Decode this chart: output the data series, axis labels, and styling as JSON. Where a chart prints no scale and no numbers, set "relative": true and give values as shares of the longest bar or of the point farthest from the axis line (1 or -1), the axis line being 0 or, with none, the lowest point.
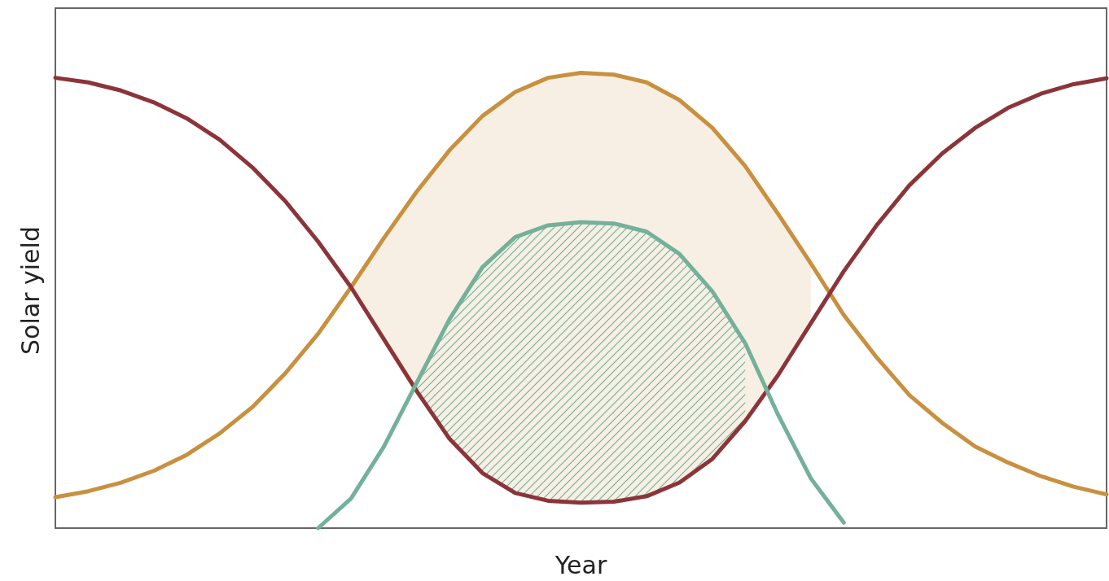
{
  "chart_data": {
    "type": "line",
    "xlabel": "Year",
    "ylabel": "Solar yield",
    "relative": true,
    "grid": false,
    "marker": "none",
    "line_style": "solid",
    "categories": [
      null,
      null,
      null,
      null,
      null,
      null,
      null,
      null,
      null,
      null,
      null,
      null,
      null,
      null,
      null,
      null,
      null,
      null,
      null,
      null,
      null,
      null,
      null,
      null,
      null,
      null,
      null,
      null,
      null,
      null,
      null,
      null,
      null
    ],
    "series": [
      {
        "color": "#c8903f",
        "values": [
          0.068,
          0.081,
          0.1,
          0.126,
          0.161,
          0.208,
          0.266,
          0.34,
          0.427,
          0.529,
          0.637,
          0.739,
          0.83,
          0.905,
          0.958,
          0.989,
          1,
          0.996,
          0.979,
          0.94,
          0.879,
          0.795,
          0.69,
          0.581,
          0.468,
          0.375,
          0.292,
          0.231,
          0.179,
          0.144,
          0.114,
          0.091,
          0.074
        ],
        "lower": [
          null,
          null,
          null,
          null,
          null,
          null,
          null,
          null,
          null,
          0.529,
          0.415,
          0.301,
          0.196,
          0.121,
          0.077,
          0.06,
          0.056,
          0.058,
          0.07,
          0.1,
          0.152,
          0.235,
          0.336,
          0.45,
          null,
          null,
          null,
          null,
          null,
          null,
          null,
          null,
          null
        ],
        "upper": [
          null,
          null,
          null,
          null,
          null,
          null,
          null,
          null,
          null,
          0.529,
          0.637,
          0.739,
          0.83,
          0.905,
          0.958,
          0.989,
          1,
          0.996,
          0.979,
          0.94,
          0.879,
          0.795,
          0.69,
          0.581,
          null,
          null,
          null,
          null,
          null,
          null,
          null,
          null,
          null
        ]
      },
      {
        "color": "#8b3439",
        "values": [
          0.989,
          0.979,
          0.961,
          0.935,
          0.9,
          0.853,
          0.792,
          0.718,
          0.629,
          0.529,
          0.415,
          0.301,
          0.196,
          0.121,
          0.077,
          0.06,
          0.056,
          0.058,
          0.07,
          0.1,
          0.152,
          0.235,
          0.336,
          0.45,
          0.564,
          0.665,
          0.753,
          0.823,
          0.879,
          0.923,
          0.954,
          0.975,
          0.988
        ]
      },
      {
        "color": "#74b09a",
        "values": [
          null,
          null,
          null,
          null,
          null,
          null,
          null,
          null,
          0,
          0.065,
          0.179,
          0.319,
          0.459,
          0.573,
          0.639,
          0.665,
          0.672,
          0.669,
          0.651,
          0.602,
          0.52,
          0.406,
          0.249,
          0.109,
          0.012,
          null,
          null,
          null,
          null,
          null,
          null,
          null,
          null
        ],
        "lower": [
          null,
          null,
          null,
          null,
          null,
          null,
          null,
          null,
          null,
          null,
          null,
          0.301,
          0.196,
          0.121,
          0.077,
          0.06,
          0.056,
          0.058,
          0.07,
          0.1,
          0.152,
          0.235,
          null,
          null,
          null,
          null,
          null,
          null,
          null,
          null,
          null,
          null,
          null
        ],
        "upper": [
          null,
          null,
          null,
          null,
          null,
          null,
          null,
          null,
          null,
          null,
          null,
          0.319,
          0.459,
          0.573,
          0.639,
          0.665,
          0.672,
          0.669,
          0.651,
          0.602,
          0.52,
          0.406,
          null,
          null,
          null,
          null,
          null,
          null,
          null,
          null,
          null,
          null,
          null
        ]
      }
    ]
  }
}
